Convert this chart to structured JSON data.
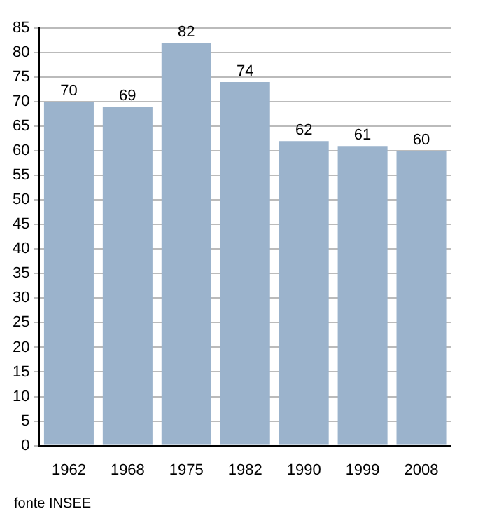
{
  "chart_data": {
    "type": "bar",
    "categories": [
      "1962",
      "1968",
      "1975",
      "1982",
      "1990",
      "1999",
      "2008"
    ],
    "values": [
      70,
      69,
      82,
      74,
      62,
      61,
      60
    ],
    "color": "#9bb3cc",
    "ylim": [
      0,
      85
    ],
    "yticks": [
      0,
      5,
      10,
      15,
      20,
      25,
      30,
      35,
      40,
      45,
      50,
      55,
      60,
      65,
      70,
      75,
      80,
      85
    ],
    "grid": "y",
    "data_labels": true,
    "annotations": [
      "fonte INSEE"
    ]
  }
}
